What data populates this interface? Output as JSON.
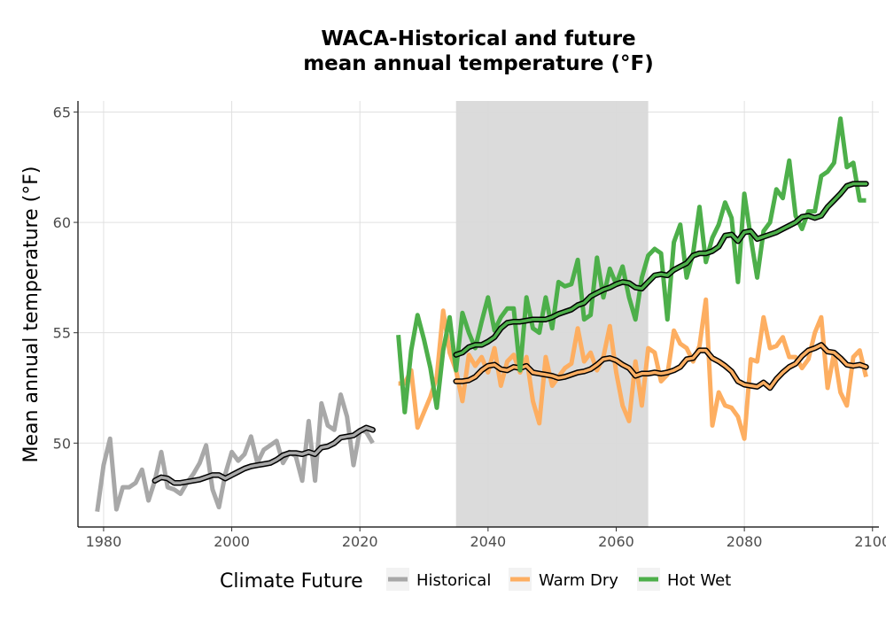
{
  "chart_data": {
    "type": "line",
    "title_line1": "WACA-Historical and future",
    "title_line2": "mean annual temperature (°F)",
    "xlabel": "",
    "ylabel": "Mean annual temperature (°F)",
    "xlim": [
      1976,
      2101
    ],
    "ylim": [
      46.2,
      65.5
    ],
    "x_ticks": [
      1980,
      2000,
      2020,
      2040,
      2060,
      2080,
      2100
    ],
    "y_ticks": [
      50,
      55,
      60,
      65
    ],
    "grid": true,
    "shaded_period": [
      2035,
      2065
    ],
    "legend_title": "Climate Future",
    "legend_position": "bottom",
    "series": [
      {
        "name": "Historical",
        "color": "#a8a8a8",
        "x": [
          1979,
          1980,
          1981,
          1982,
          1983,
          1984,
          1985,
          1986,
          1987,
          1988,
          1989,
          1990,
          1991,
          1992,
          1993,
          1994,
          1995,
          1996,
          1997,
          1998,
          1999,
          2000,
          2001,
          2002,
          2003,
          2004,
          2005,
          2006,
          2007,
          2008,
          2009,
          2010,
          2011,
          2012,
          2013,
          2014,
          2015,
          2016,
          2017,
          2018,
          2019,
          2020,
          2021,
          2022
        ],
        "y": [
          46.9,
          49.0,
          50.2,
          47.0,
          48.0,
          48.0,
          48.2,
          48.8,
          47.4,
          48.3,
          49.6,
          48.0,
          47.9,
          47.7,
          48.2,
          48.6,
          49.1,
          49.9,
          47.9,
          47.1,
          48.6,
          49.6,
          49.2,
          49.5,
          50.3,
          49.1,
          49.7,
          49.9,
          50.1,
          49.1,
          49.6,
          49.4,
          48.3,
          51.0,
          48.3,
          51.8,
          50.8,
          50.6,
          52.2,
          51.2,
          49.0,
          50.6,
          50.5,
          50.0
        ]
      },
      {
        "name": "Historical (running mean)",
        "color": "#a8a8a8",
        "x": [
          1988,
          1989,
          1990,
          1991,
          1992,
          1993,
          1994,
          1995,
          1996,
          1997,
          1998,
          1999,
          2000,
          2001,
          2002,
          2003,
          2004,
          2005,
          2006,
          2007,
          2008,
          2009,
          2010,
          2011,
          2012,
          2013,
          2014,
          2015,
          2016,
          2017,
          2018,
          2019,
          2020,
          2021,
          2022
        ],
        "y": [
          48.3,
          48.45,
          48.4,
          48.2,
          48.2,
          48.25,
          48.3,
          48.35,
          48.45,
          48.55,
          48.55,
          48.4,
          48.55,
          48.7,
          48.85,
          48.95,
          49.0,
          49.05,
          49.1,
          49.25,
          49.45,
          49.55,
          49.55,
          49.5,
          49.6,
          49.5,
          49.8,
          49.85,
          50.0,
          50.25,
          50.3,
          50.35,
          50.55,
          50.7,
          50.6
        ]
      },
      {
        "name": "Warm Dry",
        "color": "#fdae61",
        "x": [
          2026,
          2027,
          2028,
          2029,
          2030,
          2031,
          2032,
          2033,
          2034,
          2035,
          2036,
          2037,
          2038,
          2039,
          2040,
          2041,
          2042,
          2043,
          2044,
          2045,
          2046,
          2047,
          2048,
          2049,
          2050,
          2051,
          2052,
          2053,
          2054,
          2055,
          2056,
          2057,
          2058,
          2059,
          2060,
          2061,
          2062,
          2063,
          2064,
          2065,
          2066,
          2067,
          2068,
          2069,
          2070,
          2071,
          2072,
          2073,
          2074,
          2075,
          2076,
          2077,
          2078,
          2079,
          2080,
          2081,
          2082,
          2083,
          2084,
          2085,
          2086,
          2087,
          2088,
          2089,
          2090,
          2091,
          2092,
          2093,
          2094,
          2095,
          2096,
          2097,
          2098,
          2099
        ],
        "y": [
          52.7,
          52.7,
          53.3,
          50.7,
          51.4,
          52.1,
          53.0,
          56.0,
          54.1,
          53.3,
          51.9,
          54.0,
          53.5,
          53.9,
          53.2,
          54.3,
          52.6,
          53.7,
          54.0,
          53.2,
          53.9,
          51.9,
          50.9,
          53.9,
          52.6,
          53.0,
          53.4,
          53.6,
          55.2,
          53.7,
          54.1,
          53.3,
          53.9,
          55.3,
          53.2,
          51.7,
          51.0,
          53.7,
          51.7,
          54.3,
          54.1,
          52.8,
          53.1,
          55.1,
          54.5,
          54.3,
          53.7,
          54.4,
          56.5,
          50.8,
          52.3,
          51.7,
          51.6,
          51.2,
          50.2,
          53.8,
          53.7,
          55.7,
          54.3,
          54.4,
          54.8,
          53.9,
          53.9,
          53.4,
          53.8,
          55.0,
          55.7,
          52.5,
          54.1,
          52.3,
          51.7,
          53.9,
          54.2,
          53.0
        ]
      },
      {
        "name": "Warm Dry (running mean)",
        "color": "#fdae61",
        "x": [
          2035,
          2036,
          2037,
          2038,
          2039,
          2040,
          2041,
          2042,
          2043,
          2044,
          2045,
          2046,
          2047,
          2048,
          2049,
          2050,
          2051,
          2052,
          2053,
          2054,
          2055,
          2056,
          2057,
          2058,
          2059,
          2060,
          2061,
          2062,
          2063,
          2064,
          2065,
          2066,
          2067,
          2068,
          2069,
          2070,
          2071,
          2072,
          2073,
          2074,
          2075,
          2076,
          2077,
          2078,
          2079,
          2080,
          2081,
          2082,
          2083,
          2084,
          2085,
          2086,
          2087,
          2088,
          2089,
          2090,
          2091,
          2092,
          2093,
          2094,
          2095,
          2096,
          2097,
          2098,
          2099
        ],
        "y": [
          52.8,
          52.8,
          52.85,
          53.0,
          53.3,
          53.5,
          53.55,
          53.35,
          53.3,
          53.45,
          53.4,
          53.5,
          53.2,
          53.15,
          53.1,
          53.05,
          52.95,
          53.0,
          53.1,
          53.2,
          53.25,
          53.35,
          53.55,
          53.8,
          53.85,
          53.75,
          53.55,
          53.4,
          53.05,
          53.15,
          53.15,
          53.2,
          53.15,
          53.2,
          53.3,
          53.45,
          53.8,
          53.85,
          54.2,
          54.2,
          53.85,
          53.7,
          53.5,
          53.25,
          52.8,
          52.65,
          52.6,
          52.55,
          52.75,
          52.5,
          52.9,
          53.2,
          53.45,
          53.6,
          53.95,
          54.2,
          54.3,
          54.45,
          54.15,
          54.1,
          53.85,
          53.55,
          53.5,
          53.55,
          53.45
        ]
      },
      {
        "name": "Hot Wet",
        "color": "#4daf4a",
        "x": [
          2026,
          2027,
          2028,
          2029,
          2030,
          2031,
          2032,
          2033,
          2034,
          2035,
          2036,
          2037,
          2038,
          2039,
          2040,
          2041,
          2042,
          2043,
          2044,
          2045,
          2046,
          2047,
          2048,
          2049,
          2050,
          2051,
          2052,
          2053,
          2054,
          2055,
          2056,
          2057,
          2058,
          2059,
          2060,
          2061,
          2062,
          2063,
          2064,
          2065,
          2066,
          2067,
          2068,
          2069,
          2070,
          2071,
          2072,
          2073,
          2074,
          2075,
          2076,
          2077,
          2078,
          2079,
          2080,
          2081,
          2082,
          2083,
          2084,
          2085,
          2086,
          2087,
          2088,
          2089,
          2090,
          2091,
          2092,
          2093,
          2094,
          2095,
          2096,
          2097,
          2098,
          2099
        ],
        "y": [
          54.9,
          51.4,
          54.2,
          55.8,
          54.7,
          53.4,
          51.6,
          54.2,
          55.7,
          53.3,
          55.9,
          55.0,
          54.3,
          55.5,
          56.6,
          55.1,
          55.7,
          56.1,
          56.1,
          53.3,
          56.6,
          55.2,
          55.0,
          56.6,
          55.2,
          57.3,
          57.1,
          57.2,
          58.3,
          55.6,
          55.8,
          58.4,
          56.6,
          57.9,
          57.2,
          58.0,
          56.6,
          55.6,
          57.5,
          58.5,
          58.8,
          58.6,
          55.6,
          59.1,
          59.9,
          57.5,
          58.6,
          60.7,
          58.2,
          59.3,
          59.9,
          60.9,
          60.2,
          57.3,
          61.3,
          59.3,
          57.5,
          59.6,
          60.0,
          61.5,
          61.1,
          62.8,
          60.3,
          59.7,
          60.5,
          60.5,
          62.1,
          62.3,
          62.7,
          64.7,
          62.5,
          62.7,
          61.0,
          61.0
        ]
      },
      {
        "name": "Hot Wet (running mean)",
        "color": "#4daf4a",
        "x": [
          2035,
          2036,
          2037,
          2038,
          2039,
          2040,
          2041,
          2042,
          2043,
          2044,
          2045,
          2046,
          2047,
          2048,
          2049,
          2050,
          2051,
          2052,
          2053,
          2054,
          2055,
          2056,
          2057,
          2058,
          2059,
          2060,
          2061,
          2062,
          2063,
          2064,
          2065,
          2066,
          2067,
          2068,
          2069,
          2070,
          2071,
          2072,
          2073,
          2074,
          2075,
          2076,
          2077,
          2078,
          2079,
          2080,
          2081,
          2082,
          2083,
          2084,
          2085,
          2086,
          2087,
          2088,
          2089,
          2090,
          2091,
          2092,
          2093,
          2094,
          2095,
          2096,
          2097,
          2098,
          2099
        ],
        "y": [
          54.0,
          54.1,
          54.35,
          54.45,
          54.45,
          54.6,
          54.8,
          55.2,
          55.45,
          55.5,
          55.5,
          55.55,
          55.6,
          55.6,
          55.6,
          55.7,
          55.85,
          55.95,
          56.05,
          56.25,
          56.35,
          56.65,
          56.8,
          56.95,
          57.05,
          57.2,
          57.3,
          57.25,
          57.05,
          57.0,
          57.3,
          57.6,
          57.65,
          57.6,
          57.85,
          58.0,
          58.15,
          58.5,
          58.6,
          58.6,
          58.7,
          58.9,
          59.4,
          59.45,
          59.15,
          59.55,
          59.6,
          59.25,
          59.35,
          59.45,
          59.55,
          59.7,
          59.85,
          60.0,
          60.25,
          60.3,
          60.2,
          60.3,
          60.7,
          61.0,
          61.3,
          61.65,
          61.75,
          61.75,
          61.75
        ]
      }
    ]
  }
}
